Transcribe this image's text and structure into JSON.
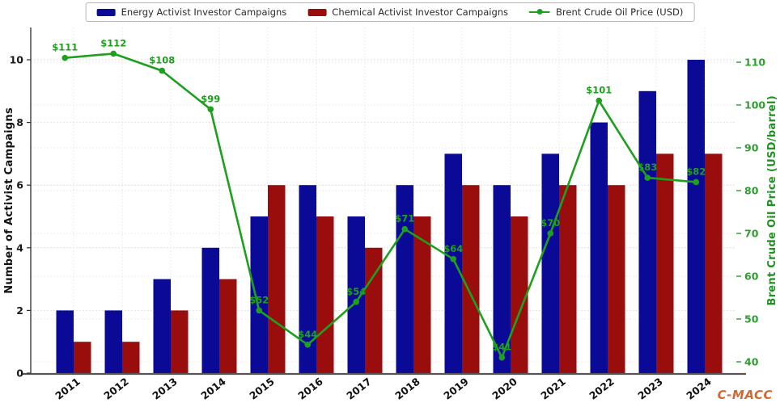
{
  "legend": {
    "items": [
      {
        "label": "Energy Activist Investor Campaigns",
        "color": "#0a0a96",
        "marker": "swatch"
      },
      {
        "label": "Chemical Activist Investor Campaigns",
        "color": "#9a0d0d",
        "marker": "swatch"
      },
      {
        "label": "Brent Crude Oil Price (USD)",
        "color": "#1ea01e",
        "marker": "line"
      }
    ]
  },
  "chart_data": {
    "type": "bar+line",
    "categories": [
      "2011",
      "2012",
      "2013",
      "2014",
      "2015",
      "2016",
      "2017",
      "2018",
      "2019",
      "2020",
      "2021",
      "2022",
      "2023",
      "2024"
    ],
    "series": [
      {
        "name": "Energy Activist Investor Campaigns",
        "type": "bar",
        "axis": "left",
        "color": "#0a0a96",
        "values": [
          2,
          2,
          3,
          4,
          5,
          6,
          5,
          6,
          7,
          6,
          7,
          8,
          9,
          10
        ]
      },
      {
        "name": "Chemical Activist Investor Campaigns",
        "type": "bar",
        "axis": "left",
        "color": "#9a0d0d",
        "values": [
          1,
          1,
          2,
          3,
          6,
          5,
          4,
          5,
          6,
          5,
          6,
          6,
          7,
          7
        ]
      },
      {
        "name": "Brent Crude Oil Price (USD)",
        "type": "line",
        "axis": "right",
        "color": "#1ea01e",
        "values": [
          111,
          112,
          108,
          99,
          52,
          44,
          54,
          71,
          64,
          41,
          70,
          101,
          83,
          82
        ],
        "point_labels": [
          "$111",
          "$112",
          "$108",
          "$99",
          "$52",
          "$44",
          "$54",
          "$71",
          "$64",
          "$41",
          "$70",
          "$101",
          "$83",
          "$82"
        ]
      }
    ],
    "left_axis": {
      "label": "Number of Activist Campaigns",
      "ticks": [
        0,
        2,
        4,
        6,
        8,
        10
      ],
      "range": [
        0,
        11
      ],
      "color": "#111111"
    },
    "right_axis": {
      "label": "Brent Crude Oil Price (USD/barrel)",
      "ticks": [
        40,
        50,
        60,
        70,
        80,
        90,
        100,
        110
      ],
      "range": [
        38,
        113
      ],
      "color": "#1f9320"
    },
    "grid": true,
    "legend_position": "top-center"
  },
  "watermark": {
    "text": "C-MACC",
    "color": "#d06a35"
  }
}
